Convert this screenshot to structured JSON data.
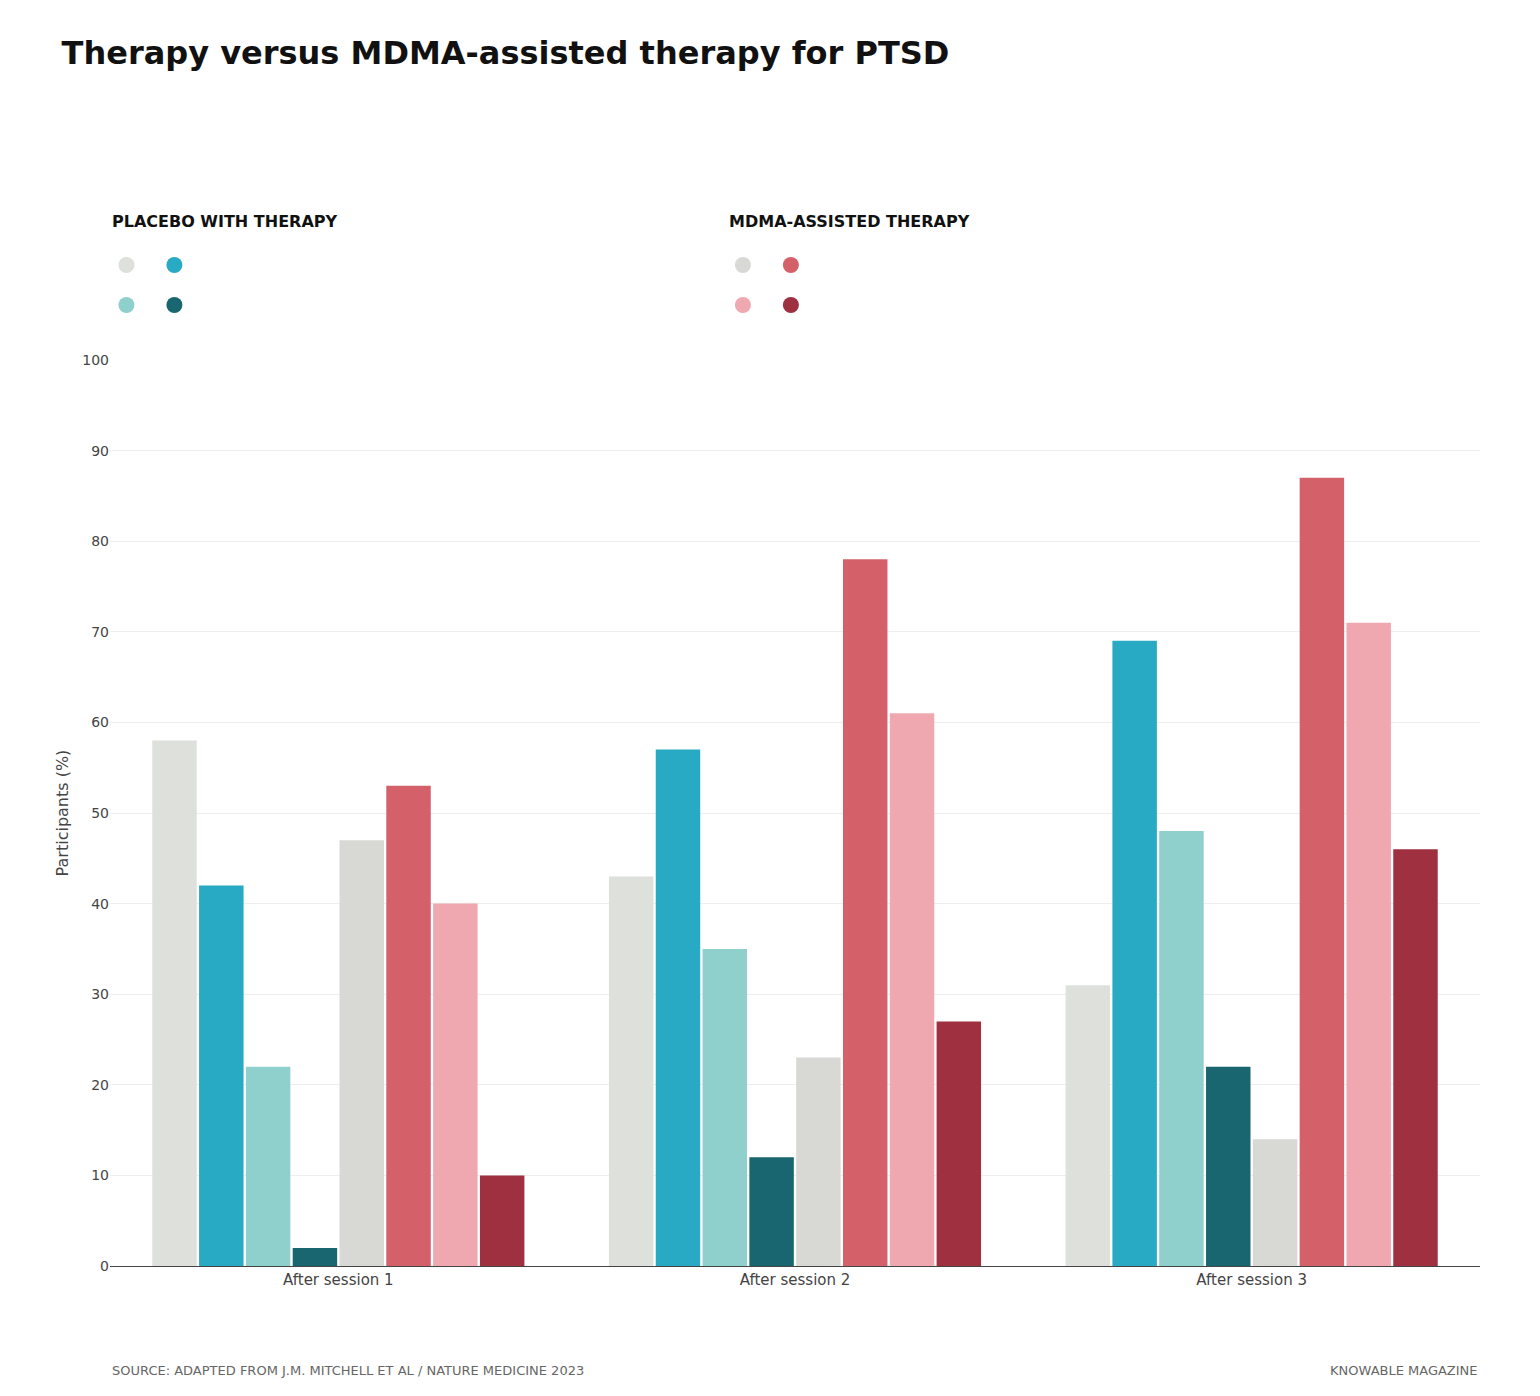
{
  "chart_data": {
    "type": "bar",
    "title": "Therapy versus MDMA-assisted therapy for PTSD",
    "ylabel": "Participants (%)",
    "categories": [
      "After session 1",
      "After session 2",
      "After session 3"
    ],
    "series": [
      {
        "color": "#dde0db",
        "values": [
          58,
          43,
          31
        ]
      },
      {
        "color": "#29aac4",
        "values": [
          42,
          57,
          69
        ]
      },
      {
        "color": "#8fd0cc",
        "values": [
          22,
          35,
          48
        ]
      },
      {
        "color": "#1a6670",
        "values": [
          2,
          12,
          22
        ]
      },
      {
        "color": "#d8d8d5",
        "values": [
          47,
          23,
          14
        ]
      },
      {
        "color": "#d4606a",
        "values": [
          53,
          78,
          87
        ]
      },
      {
        "color": "#f0a8b0",
        "values": [
          40,
          61,
          71
        ]
      },
      {
        "color": "#9e3040",
        "values": [
          10,
          27,
          46
        ]
      }
    ],
    "ylim": [
      0,
      100
    ],
    "yticks": [
      0,
      10,
      20,
      30,
      40,
      50,
      60,
      70,
      80,
      90,
      100
    ],
    "grid": true,
    "annotations": [
      "PLACEBO WITH THERAPY",
      "MDMA-ASSISTED THERAPY",
      "SOURCE: ADAPTED FROM J.M. MITCHELL ET AL / NATURE MEDICINE 2023",
      "KNOWABLE MAGAZINE"
    ]
  }
}
